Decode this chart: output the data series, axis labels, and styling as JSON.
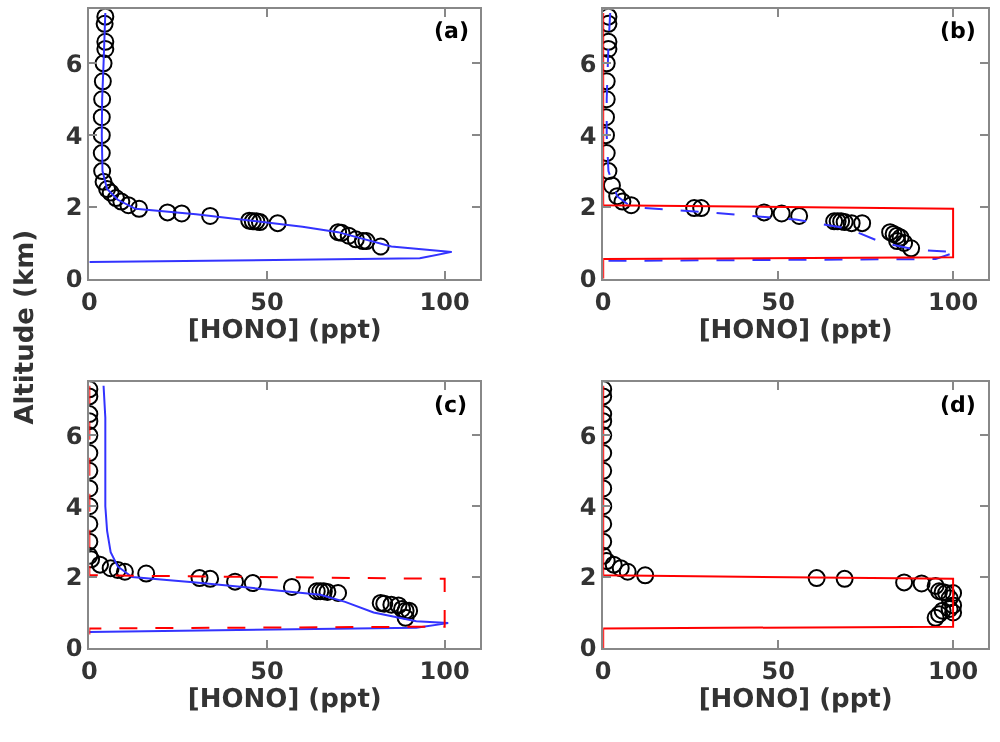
{
  "chart_data": [
    {
      "type": "scatter",
      "xlabel": "[HONO] (ppt)",
      "ylabel": "Altitude (km)",
      "annotations": [
        "(a)"
      ],
      "xlim": [
        0,
        110
      ],
      "ylim": [
        0,
        7.5
      ],
      "xticks": [
        0,
        50,
        100
      ],
      "yticks": [
        0,
        2,
        4,
        6
      ],
      "series": [
        {
          "marker": "circle",
          "color": "#000000",
          "x": [
            4.5,
            4.3,
            4.5,
            4.5,
            4,
            3.8,
            3.6,
            3.5,
            3.5,
            3.5,
            3.6,
            4,
            5,
            6,
            7.5,
            9,
            11,
            14,
            22,
            26,
            34,
            45,
            46,
            47,
            48,
            53,
            70,
            71,
            73,
            75,
            77,
            78,
            82
          ],
          "values": [
            7.3,
            7.1,
            6.6,
            6.4,
            6.0,
            5.5,
            5.0,
            4.5,
            4.0,
            3.5,
            3.0,
            2.7,
            2.5,
            2.4,
            2.25,
            2.15,
            2.05,
            1.95,
            1.85,
            1.82,
            1.75,
            1.62,
            1.6,
            1.6,
            1.58,
            1.55,
            1.3,
            1.28,
            1.2,
            1.1,
            1.05,
            1.05,
            0.9
          ]
        },
        {
          "type": "line",
          "line_style": "solid",
          "color": "#3333ff",
          "x": [
            4.5,
            4,
            3.6,
            3.5,
            3.7,
            5,
            8,
            13,
            30,
            47,
            60,
            70,
            85,
            102,
            93,
            0
          ],
          "values": [
            7.4,
            6,
            5,
            4,
            3,
            2.5,
            2.2,
            1.95,
            1.8,
            1.6,
            1.45,
            1.3,
            0.9,
            0.75,
            0.57,
            0.47
          ]
        }
      ]
    },
    {
      "type": "scatter",
      "xlabel": "[HONO] (ppt)",
      "annotations": [
        "(b)"
      ],
      "xlim": [
        0,
        110
      ],
      "ylim": [
        0,
        7.5
      ],
      "xticks": [
        0,
        50,
        100
      ],
      "yticks": [
        0,
        2,
        4,
        6
      ],
      "series": [
        {
          "marker": "circle",
          "color": "#000000",
          "x": [
            1.5,
            1.5,
            1.5,
            1.5,
            1,
            1,
            1,
            0.8,
            0.8,
            1,
            1.5,
            2.5,
            4,
            5.5,
            8,
            26,
            28,
            46,
            51,
            56,
            66,
            67,
            68,
            69,
            71,
            74,
            82,
            83,
            84,
            85,
            84,
            86,
            88
          ],
          "values": [
            7.3,
            7.1,
            6.6,
            6.4,
            6,
            5.5,
            5,
            4.5,
            4,
            3.5,
            3,
            2.6,
            2.3,
            2.15,
            2.05,
            1.97,
            1.97,
            1.85,
            1.82,
            1.75,
            1.6,
            1.6,
            1.6,
            1.58,
            1.55,
            1.55,
            1.3,
            1.25,
            1.2,
            1.15,
            1.05,
            1.0,
            0.85
          ]
        },
        {
          "type": "line",
          "line_style": "dashed",
          "color": "#3333ff",
          "x": [
            2,
            1.5,
            1,
            1,
            1.5,
            4,
            8,
            30,
            55,
            70,
            80,
            90,
            101,
            95,
            0
          ],
          "values": [
            7.4,
            6.5,
            5,
            4,
            3,
            2.3,
            2.0,
            1.85,
            1.65,
            1.4,
            1.0,
            0.8,
            0.75,
            0.55,
            0.5
          ]
        },
        {
          "type": "line",
          "line_style": "solid",
          "color": "#ff0000",
          "x": [
            0,
            0,
            100,
            100,
            0,
            0
          ],
          "values": [
            7.4,
            2.05,
            1.95,
            0.6,
            0.55,
            0
          ]
        }
      ]
    },
    {
      "type": "scatter",
      "xlabel": "[HONO] (ppt)",
      "annotations": [
        "(c)"
      ],
      "xlim": [
        0,
        110
      ],
      "ylim": [
        0,
        7.5
      ],
      "xticks": [
        0,
        50,
        100
      ],
      "yticks": [
        0,
        2,
        4,
        6
      ],
      "series": [
        {
          "marker": "circle",
          "color": "#000000",
          "x": [
            0,
            0,
            0,
            0,
            0,
            0,
            0,
            0,
            0,
            0,
            0,
            0,
            0.5,
            3,
            6,
            8,
            10,
            16,
            31,
            34,
            41,
            46,
            57,
            64,
            65,
            66,
            67,
            70,
            82,
            83,
            85,
            87,
            88,
            89,
            90,
            89
          ],
          "values": [
            7.3,
            7.1,
            6.6,
            6.4,
            6,
            5.5,
            5,
            4.5,
            4,
            3.5,
            3,
            2.6,
            2.5,
            2.35,
            2.25,
            2.2,
            2.15,
            2.1,
            1.97,
            1.95,
            1.87,
            1.83,
            1.72,
            1.6,
            1.6,
            1.6,
            1.58,
            1.55,
            1.27,
            1.25,
            1.22,
            1.2,
            1.1,
            1.05,
            1.05,
            0.85
          ]
        },
        {
          "type": "line",
          "line_style": "solid",
          "color": "#3333ff",
          "x": [
            4,
            4.5,
            4.5,
            4.5,
            5,
            6,
            8,
            12,
            30,
            50,
            65,
            72,
            80,
            92,
            101,
            92,
            0
          ],
          "values": [
            7.4,
            6.5,
            5,
            4,
            3.3,
            2.7,
            2.3,
            2.0,
            1.85,
            1.65,
            1.5,
            1.3,
            1.0,
            0.75,
            0.7,
            0.57,
            0.45
          ]
        },
        {
          "type": "line",
          "line_style": "dashed",
          "color": "#ff0000",
          "x": [
            0,
            0,
            100,
            100,
            0,
            0
          ],
          "values": [
            7.4,
            2.05,
            1.95,
            0.6,
            0.55,
            0
          ]
        }
      ]
    },
    {
      "type": "scatter",
      "xlabel": "[HONO] (ppt)",
      "annotations": [
        "(d)"
      ],
      "xlim": [
        0,
        110
      ],
      "ylim": [
        0,
        7.5
      ],
      "xticks": [
        0,
        50,
        100
      ],
      "yticks": [
        0,
        2,
        4,
        6
      ],
      "series": [
        {
          "marker": "circle",
          "color": "#000000",
          "x": [
            0,
            0,
            0,
            0,
            0,
            0,
            0,
            0,
            0,
            0,
            0,
            0,
            1,
            3,
            5,
            7,
            12,
            61,
            69,
            86,
            91,
            95,
            96,
            97,
            98,
            100,
            99,
            100,
            100,
            99,
            97,
            96,
            95
          ],
          "values": [
            7.3,
            7.1,
            6.6,
            6.4,
            6,
            5.5,
            5,
            4.5,
            4,
            3.5,
            3,
            2.6,
            2.45,
            2.35,
            2.25,
            2.15,
            2.05,
            1.97,
            1.95,
            1.85,
            1.82,
            1.75,
            1.6,
            1.58,
            1.55,
            1.55,
            1.4,
            1.2,
            1.0,
            1.1,
            1.05,
            0.95,
            0.85
          ]
        },
        {
          "type": "line",
          "line_style": "solid",
          "color": "#ff0000",
          "x": [
            0,
            0,
            100,
            100,
            0,
            0
          ],
          "values": [
            7.4,
            2.05,
            1.95,
            0.6,
            0.55,
            0
          ]
        }
      ]
    }
  ]
}
